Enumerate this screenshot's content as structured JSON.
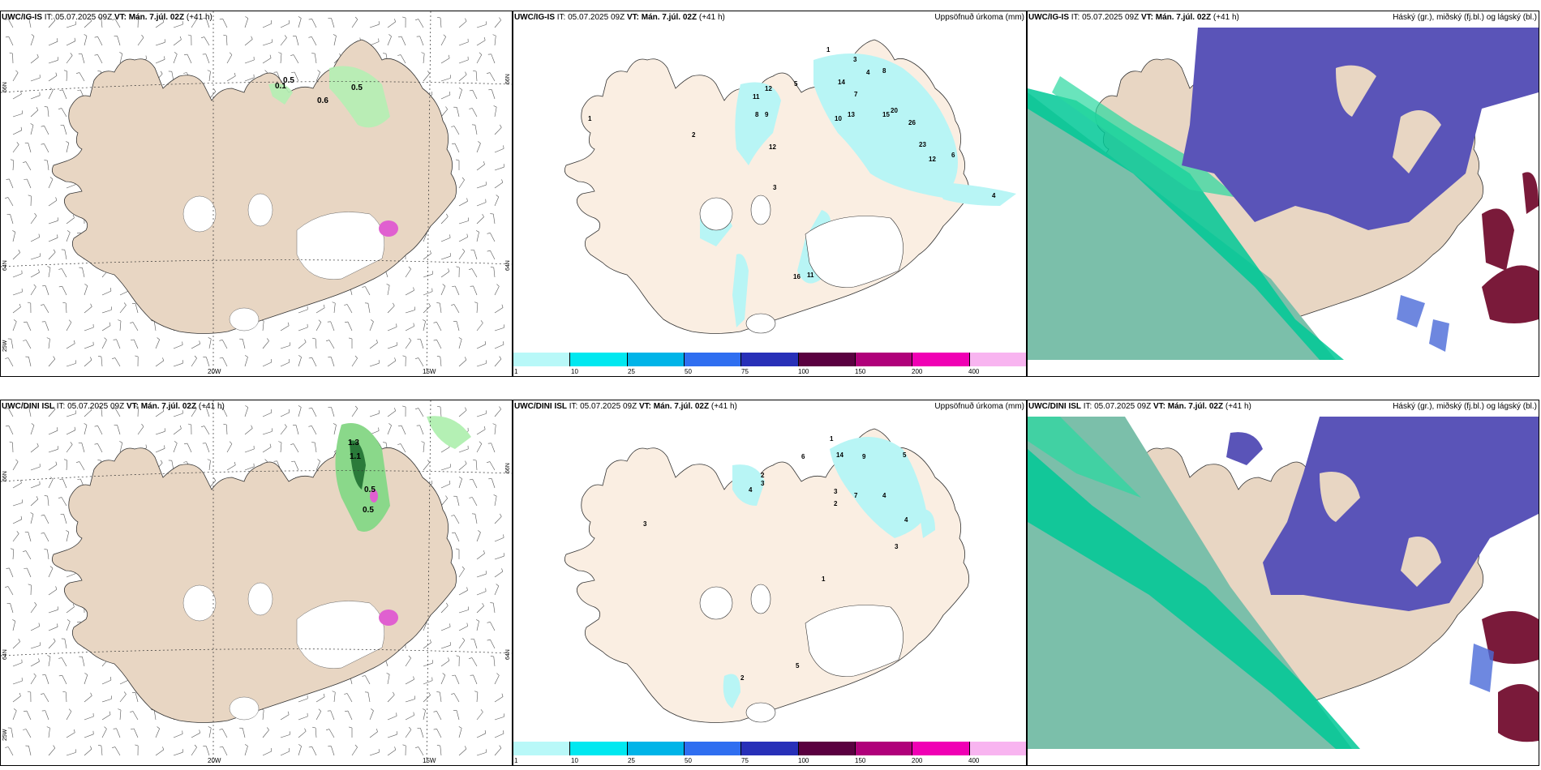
{
  "rows": [
    {
      "model": "UWC/IG-IS",
      "it_label": "IT:",
      "it_value": "05.07.2025 09Z",
      "vt_label": "VT:",
      "vt_value": "Mán. 7.júl. 02Z",
      "lead": "(+41 h)",
      "wind_values": [
        "0.5",
        "0.1",
        "0.6",
        "0.5"
      ],
      "precip_values": [
        "1",
        "2",
        "3",
        "4",
        "8",
        "5",
        "11",
        "12",
        "8",
        "9",
        "6",
        "14",
        "7",
        "10",
        "13",
        "15",
        "26",
        "20",
        "23",
        "12",
        "16",
        "11"
      ]
    },
    {
      "model": "UWC/DINI ISL",
      "it_label": "IT:",
      "it_value": "05.07.2025 09Z",
      "vt_label": "VT:",
      "vt_value": "Mán. 7.júl. 02Z",
      "lead": "(+41 h)",
      "wind_values": [
        "1.3",
        "1.1",
        "0.5",
        "0.5"
      ],
      "precip_values": [
        "1",
        "2",
        "3",
        "4",
        "6",
        "9",
        "14",
        "7",
        "5"
      ]
    }
  ],
  "precip_title": "Uppsöfnuð úrkoma (mm)",
  "cloud_title": "Háský (gr.), miðský (fj.bl.) og lágský (bl.)",
  "axis_labels": {
    "lat_66": "66N",
    "lat_64": "64N",
    "lon_20": "20W",
    "lon_15": "15W",
    "lon_25": "25W"
  },
  "colorbar": {
    "ticks": [
      "1",
      "10",
      "25",
      "50",
      "75",
      "100",
      "150",
      "200",
      "400"
    ],
    "colors": [
      "#b8f8f8",
      "#00e8f0",
      "#00b4e8",
      "#2f6ef0",
      "#2830b8",
      "#5a0040",
      "#b0007a",
      "#f000b4",
      "#f8b4f0"
    ]
  },
  "colors": {
    "land": "#e8d6c3",
    "land_light": "#faeee2",
    "ice_cap": "#ffffff",
    "precip_light": "#b8f5f5",
    "wind_green": "#b4f0b4",
    "high_cloud": "#5a54b8",
    "mid_cloud": "#00c896",
    "low_cloud": "#7bbfaa",
    "dark_red": "#7a1a3a"
  }
}
